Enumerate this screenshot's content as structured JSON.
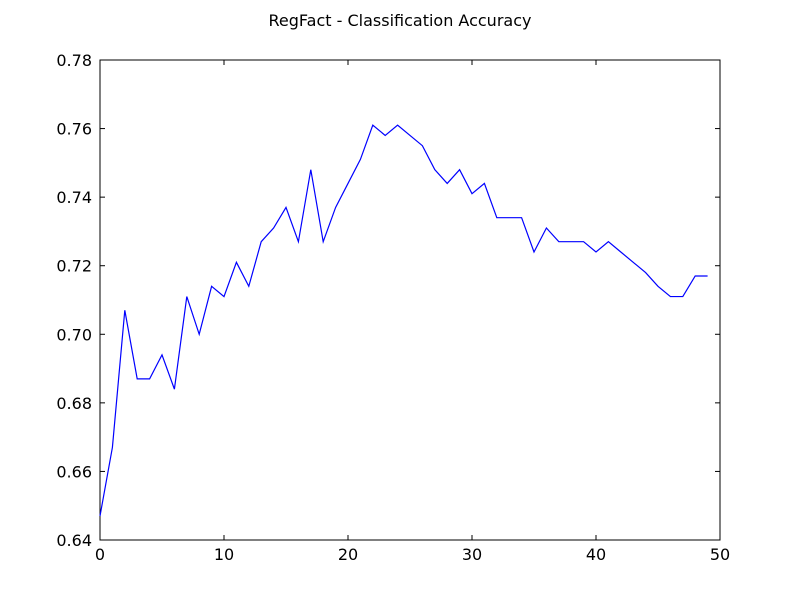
{
  "chart_data": {
    "type": "line",
    "title": "RegFact - Classification Accuracy",
    "xlabel": "",
    "ylabel": "",
    "xlim": [
      0,
      50
    ],
    "ylim": [
      0.64,
      0.78
    ],
    "xticks": [
      0,
      10,
      20,
      30,
      40,
      50
    ],
    "xtick_labels": [
      "0",
      "10",
      "20",
      "30",
      "40",
      "50"
    ],
    "yticks": [
      0.64,
      0.66,
      0.68,
      0.7,
      0.72,
      0.74,
      0.76,
      0.78
    ],
    "ytick_labels": [
      "0.64",
      "0.66",
      "0.68",
      "0.70",
      "0.72",
      "0.74",
      "0.76",
      "0.78"
    ],
    "grid": false,
    "series": [
      {
        "color": "#0000ff",
        "x": [
          0,
          1,
          2,
          3,
          4,
          5,
          6,
          7,
          8,
          9,
          10,
          11,
          12,
          13,
          14,
          15,
          16,
          17,
          18,
          19,
          20,
          21,
          22,
          23,
          24,
          25,
          26,
          27,
          28,
          29,
          30,
          31,
          32,
          33,
          34,
          35,
          36,
          37,
          38,
          39,
          40,
          41,
          42,
          43,
          44,
          45,
          46,
          47,
          48,
          49
        ],
        "y": [
          0.647,
          0.667,
          0.707,
          0.687,
          0.687,
          0.694,
          0.684,
          0.711,
          0.7,
          0.714,
          0.711,
          0.721,
          0.714,
          0.727,
          0.731,
          0.737,
          0.727,
          0.748,
          0.727,
          0.737,
          0.744,
          0.751,
          0.761,
          0.758,
          0.761,
          0.758,
          0.755,
          0.748,
          0.744,
          0.748,
          0.741,
          0.744,
          0.734,
          0.734,
          0.734,
          0.724,
          0.731,
          0.727,
          0.727,
          0.727,
          0.724,
          0.727,
          0.724,
          0.721,
          0.718,
          0.714,
          0.711,
          0.711,
          0.717,
          0.717
        ]
      }
    ]
  }
}
